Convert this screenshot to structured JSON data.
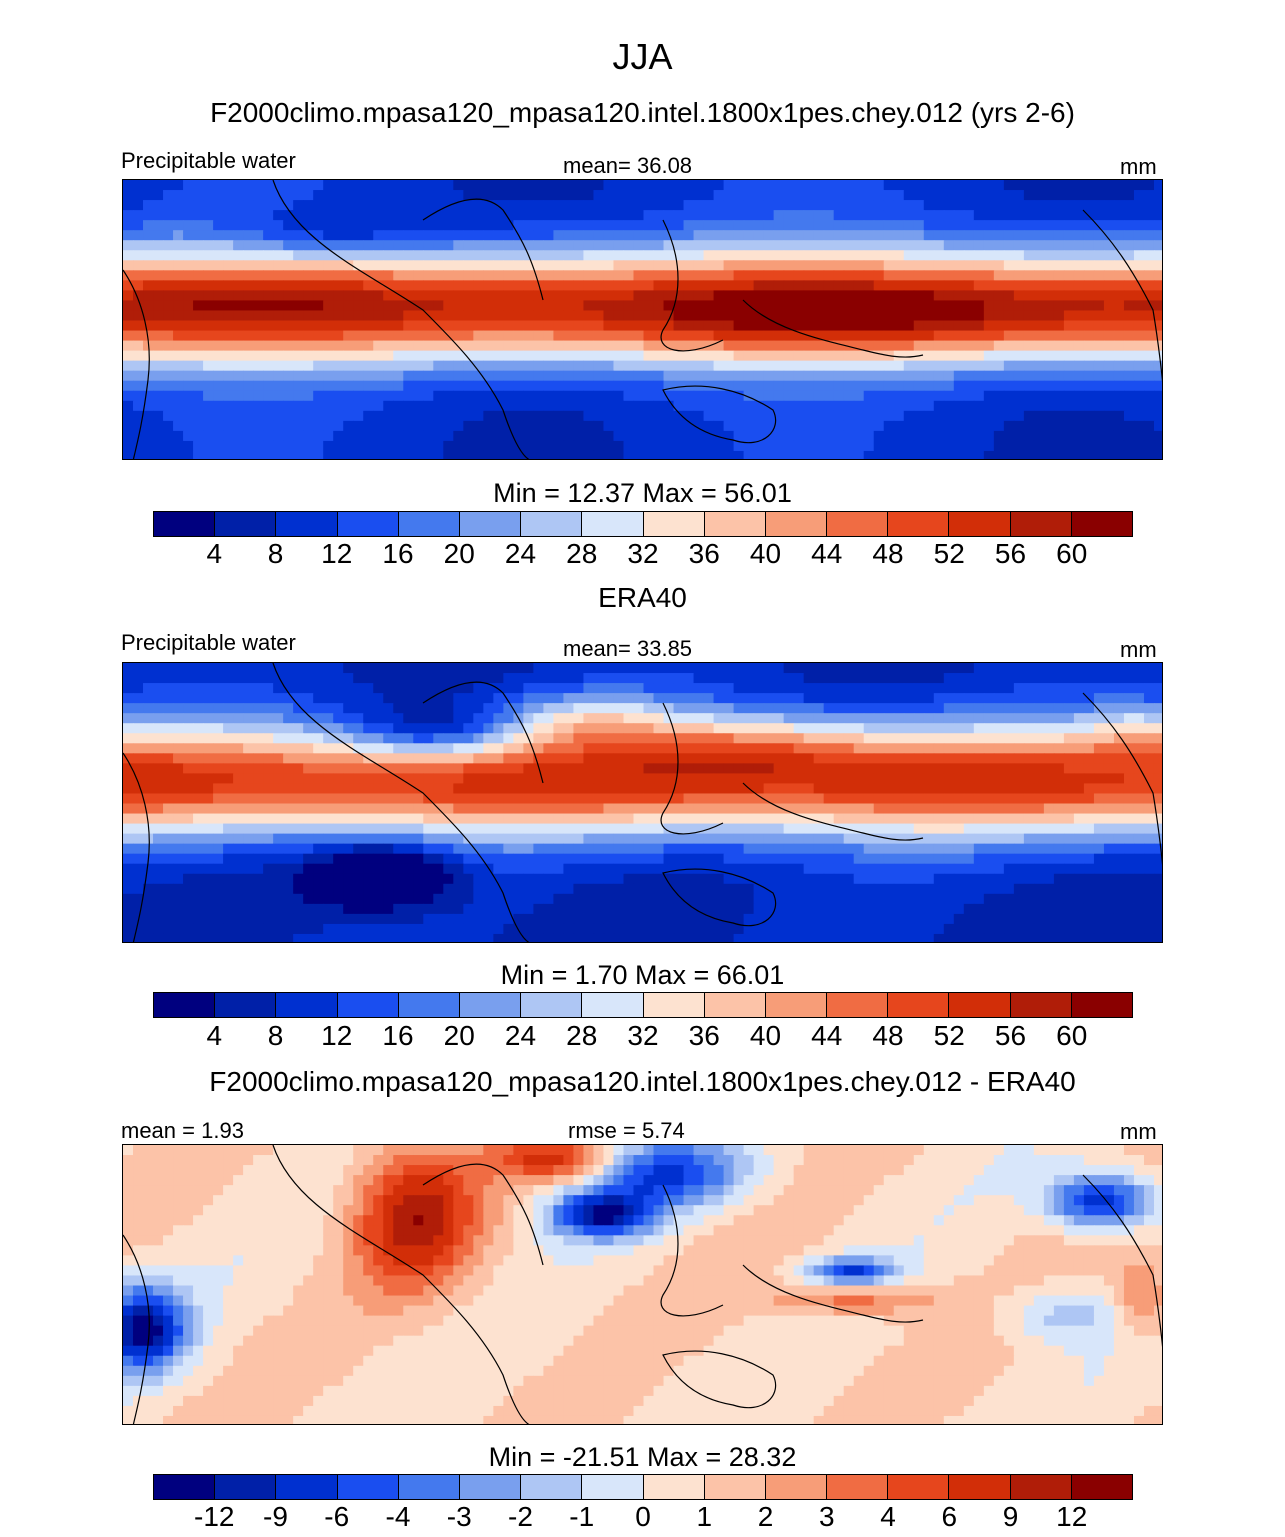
{
  "title": "JJA",
  "panels": [
    {
      "heading": "F2000climo.mpasa120_mpasa120.intel.1800x1pes.chey.012 (yrs 2-6)",
      "left_label": "Precipitable water",
      "center_label": "mean=  36.08",
      "right_label": "mm",
      "minmax": "Min =  12.37 Max =  56.01",
      "ticks": [
        "4",
        "8",
        "12",
        "16",
        "20",
        "24",
        "28",
        "32",
        "36",
        "40",
        "44",
        "48",
        "52",
        "56",
        "60"
      ],
      "palette": "abs",
      "field": "model"
    },
    {
      "heading": "ERA40",
      "left_label": "Precipitable water",
      "center_label": "mean=  33.85",
      "right_label": "mm",
      "minmax": "Min =   1.70 Max =  66.01",
      "ticks": [
        "4",
        "8",
        "12",
        "16",
        "20",
        "24",
        "28",
        "32",
        "36",
        "40",
        "44",
        "48",
        "52",
        "56",
        "60"
      ],
      "palette": "abs",
      "field": "obs"
    },
    {
      "heading": "F2000climo.mpasa120_mpasa120.intel.1800x1pes.chey.012 - ERA40",
      "left_label": "mean =   1.93",
      "center_label": "rmse =   5.74",
      "right_label": "mm",
      "minmax": "Min = -21.51 Max =  28.32",
      "ticks": [
        "-12",
        "-9",
        "-6",
        "-4",
        "-3",
        "-2",
        "-1",
        "0",
        "1",
        "2",
        "3",
        "4",
        "6",
        "9",
        "12"
      ],
      "palette": "diff",
      "field": "diff"
    }
  ],
  "colors": {
    "levels": [
      "#00007f",
      "#0020a8",
      "#0030d0",
      "#1a4ef0",
      "#4479ee",
      "#799fee",
      "#aec6f4",
      "#d8e6fa",
      "#fde2d0",
      "#fcc3a8",
      "#f79d78",
      "#f06c43",
      "#e6461d",
      "#d22e08",
      "#b01d08",
      "#8a0000"
    ]
  }
}
